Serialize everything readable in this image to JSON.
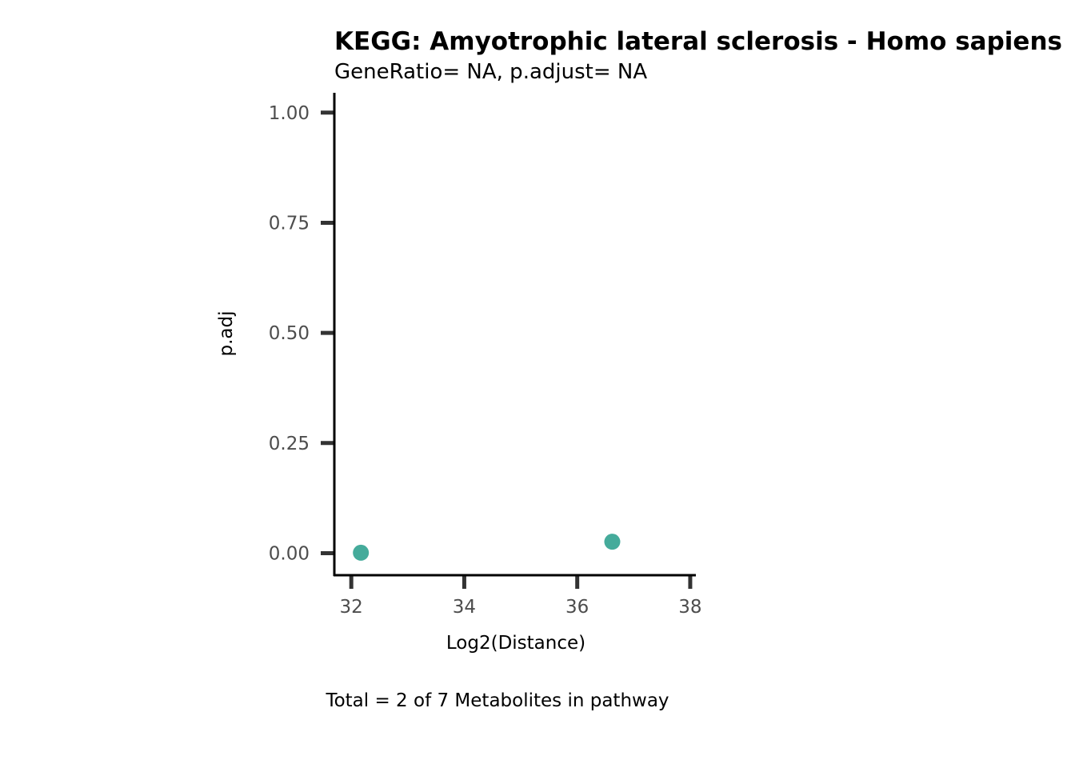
{
  "chart_data": {
    "type": "scatter",
    "title": "KEGG: Amyotrophic lateral sclerosis - Homo sapiens",
    "subtitle": "GeneRatio= NA, p.adjust= NA",
    "xlabel": "Log2(Distance)",
    "ylabel": "p.adj",
    "caption": "Total = 2 of 7 Metabolites in pathway",
    "xlim": [
      31.7,
      38.1
    ],
    "ylim": [
      -0.05,
      1.045
    ],
    "x_ticks": [
      32,
      34,
      36,
      38
    ],
    "x_tick_labels": [
      "32",
      "34",
      "36",
      "38"
    ],
    "y_ticks": [
      0,
      0.25,
      0.5,
      0.75,
      1.0
    ],
    "y_tick_labels": [
      "0.00",
      "0.25",
      "0.50",
      "0.75",
      "1.00"
    ],
    "grid": false,
    "legend": "none",
    "point_color": "#45AB9B",
    "points": [
      {
        "x": 32.17,
        "y": 0.001
      },
      {
        "x": 36.62,
        "y": 0.026
      }
    ]
  }
}
